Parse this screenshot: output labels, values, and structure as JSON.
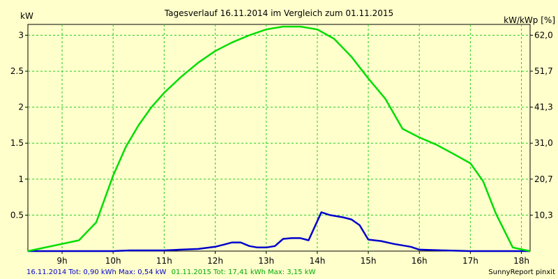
{
  "chart_data": {
    "type": "line",
    "title": "Tagesverlauf 16.11.2014 im Vergleich zum 01.11.2015",
    "ylabel_left": "kW",
    "ylabel_right": "kW/kWp [%]",
    "xlim": [
      8.33,
      18.17
    ],
    "ylim": [
      0,
      3.15
    ],
    "grid": true,
    "x_ticks": [
      {
        "value": 9,
        "label": "9h"
      },
      {
        "value": 10,
        "label": "10h"
      },
      {
        "value": 11,
        "label": "11h"
      },
      {
        "value": 12,
        "label": "12h"
      },
      {
        "value": 13,
        "label": "13h"
      },
      {
        "value": 14,
        "label": "14h"
      },
      {
        "value": 15,
        "label": "15h"
      },
      {
        "value": 16,
        "label": "16h"
      },
      {
        "value": 17,
        "label": "17h"
      },
      {
        "value": 18,
        "label": "18h"
      }
    ],
    "y_ticks_left": [
      {
        "value": 0.5,
        "label": "0.5"
      },
      {
        "value": 1,
        "label": "1"
      },
      {
        "value": 1.5,
        "label": "1.5"
      },
      {
        "value": 2,
        "label": "2"
      },
      {
        "value": 2.5,
        "label": "2.5"
      },
      {
        "value": 3,
        "label": "3"
      }
    ],
    "y_ticks_right": [
      {
        "value": 0.5,
        "label": "10,3"
      },
      {
        "value": 1,
        "label": "20,7"
      },
      {
        "value": 1.5,
        "label": "31,0"
      },
      {
        "value": 2,
        "label": "41,3"
      },
      {
        "value": 2.5,
        "label": "51,7"
      },
      {
        "value": 3,
        "label": "62,0"
      }
    ],
    "series": [
      {
        "name": "16.11.2014",
        "color": "#0000cc",
        "points": [
          [
            8.33,
            0.0
          ],
          [
            9.0,
            0.0
          ],
          [
            9.67,
            0.0
          ],
          [
            10.0,
            0.0
          ],
          [
            10.33,
            0.01
          ],
          [
            10.67,
            0.01
          ],
          [
            11.0,
            0.01
          ],
          [
            11.33,
            0.02
          ],
          [
            11.67,
            0.03
          ],
          [
            12.0,
            0.06
          ],
          [
            12.17,
            0.09
          ],
          [
            12.33,
            0.12
          ],
          [
            12.5,
            0.12
          ],
          [
            12.67,
            0.07
          ],
          [
            12.83,
            0.05
          ],
          [
            13.0,
            0.05
          ],
          [
            13.17,
            0.07
          ],
          [
            13.33,
            0.17
          ],
          [
            13.5,
            0.18
          ],
          [
            13.67,
            0.18
          ],
          [
            13.83,
            0.15
          ],
          [
            14.08,
            0.54
          ],
          [
            14.25,
            0.5
          ],
          [
            14.5,
            0.47
          ],
          [
            14.67,
            0.44
          ],
          [
            14.83,
            0.36
          ],
          [
            15.0,
            0.16
          ],
          [
            15.25,
            0.14
          ],
          [
            15.5,
            0.1
          ],
          [
            15.83,
            0.06
          ],
          [
            16.0,
            0.02
          ],
          [
            16.5,
            0.01
          ],
          [
            17.0,
            0.0
          ],
          [
            17.5,
            0.0
          ],
          [
            18.17,
            0.0
          ]
        ]
      },
      {
        "name": "01.11.2015",
        "color": "#00dd00",
        "points": [
          [
            8.33,
            0.0
          ],
          [
            9.0,
            0.1
          ],
          [
            9.33,
            0.15
          ],
          [
            9.67,
            0.4
          ],
          [
            10.0,
            1.05
          ],
          [
            10.25,
            1.45
          ],
          [
            10.5,
            1.75
          ],
          [
            10.75,
            2.0
          ],
          [
            11.0,
            2.2
          ],
          [
            11.33,
            2.42
          ],
          [
            11.67,
            2.62
          ],
          [
            12.0,
            2.78
          ],
          [
            12.33,
            2.9
          ],
          [
            12.67,
            3.0
          ],
          [
            13.0,
            3.08
          ],
          [
            13.33,
            3.12
          ],
          [
            13.67,
            3.12
          ],
          [
            14.0,
            3.08
          ],
          [
            14.33,
            2.95
          ],
          [
            14.67,
            2.7
          ],
          [
            15.0,
            2.4
          ],
          [
            15.33,
            2.12
          ],
          [
            15.67,
            1.7
          ],
          [
            16.0,
            1.58
          ],
          [
            16.33,
            1.48
          ],
          [
            16.67,
            1.35
          ],
          [
            17.0,
            1.22
          ],
          [
            17.25,
            0.97
          ],
          [
            17.5,
            0.52
          ],
          [
            17.83,
            0.05
          ],
          [
            18.17,
            0.0
          ]
        ]
      }
    ]
  },
  "footer": {
    "series1_text": "16.11.2014 Tot: 0,90 kWh Max: 0,54 kW",
    "series2_text": "01.11.2015 Tot: 17,41 kWh Max: 3,15 kW",
    "brand": "SunnyReport pinxit"
  }
}
